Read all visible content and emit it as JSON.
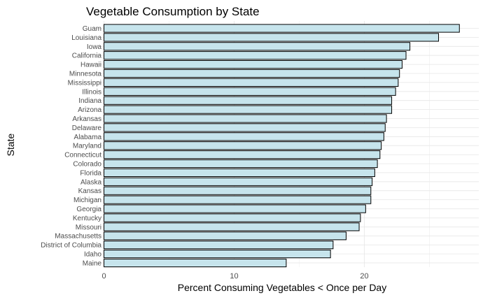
{
  "chart_data": {
    "type": "bar",
    "orientation": "horizontal",
    "title": "Vegetable Consumption by State",
    "xlabel": "Percent Consuming Vegetables < Once per Day",
    "ylabel": "State",
    "xlim": [
      0,
      28.5
    ],
    "xticks": [
      0,
      10,
      20
    ],
    "grid": true,
    "bar_color": "#c6e4ec",
    "bar_edge_color": "#000000",
    "categories": [
      "Guam",
      "Louisiana",
      "Iowa",
      "California",
      "Hawaii",
      "Minnesota",
      "Mississippi",
      "Illinois",
      "Indiana",
      "Arizona",
      "Arkansas",
      "Delaware",
      "Alabama",
      "Maryland",
      "Connecticut",
      "Colorado",
      "Florida",
      "Alaska",
      "Kansas",
      "Michigan",
      "Georgia",
      "Kentucky",
      "Missouri",
      "Massachusetts",
      "District of Columbia",
      "Idaho",
      "Maine"
    ],
    "values": [
      27.3,
      25.7,
      23.5,
      23.2,
      22.9,
      22.7,
      22.6,
      22.4,
      22.1,
      22.1,
      21.7,
      21.6,
      21.5,
      21.3,
      21.2,
      21.0,
      20.8,
      20.6,
      20.5,
      20.5,
      20.1,
      19.7,
      19.6,
      18.6,
      17.6,
      17.4,
      14.0
    ]
  }
}
